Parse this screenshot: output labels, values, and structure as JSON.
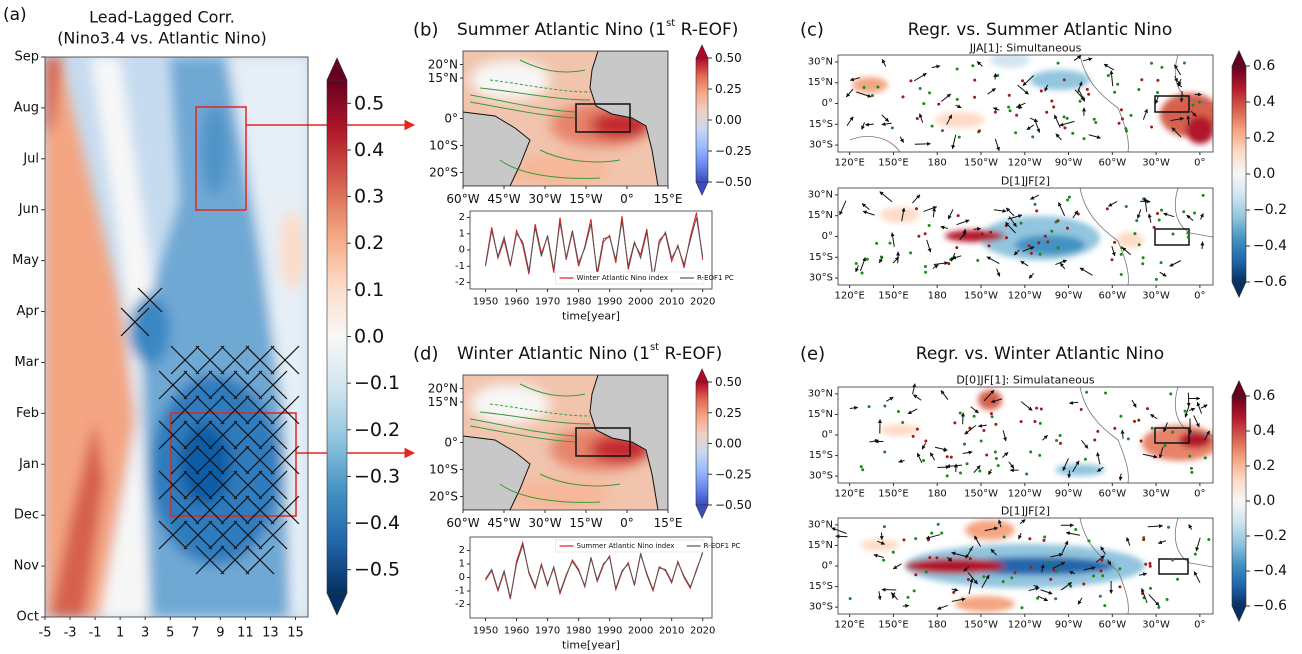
{
  "chart_data": [
    {
      "type": "contour",
      "panel": "(a)",
      "title": "Lead-Lagged Corr.",
      "subtitle": "(Nino3.4 vs. Atlantic Nino)",
      "categories": [
        "Oct",
        "Nov",
        "Dec",
        "Jan",
        "Feb",
        "Mar",
        "Apr",
        "May",
        "Jun",
        "Jul",
        "Aug",
        "Sep"
      ],
      "xlim": [
        -5,
        16
      ],
      "xticks": [
        -5,
        -3,
        -1,
        1,
        3,
        5,
        7,
        9,
        11,
        13,
        15
      ],
      "colorbar": {
        "colormap": "RdBu_r",
        "lim": [
          -0.55,
          0.55
        ],
        "ticks": [
          {
            "value": -0.5,
            "label": "−0.5"
          },
          {
            "value": -0.4,
            "label": "−0.4"
          },
          {
            "value": -0.3,
            "label": "−0.3"
          },
          {
            "value": -0.2,
            "label": "−0.2"
          },
          {
            "value": -0.1,
            "label": "−0.1"
          },
          {
            "value": 0,
            "label": "0.0"
          },
          0.1,
          0.2,
          0.3,
          0.4,
          0.5
        ]
      }
    },
    {
      "type": "map",
      "panel": "(b)",
      "title": "Summer Atlantic Nino (1",
      "title_sup": "st",
      "title_end": " R-EOF)",
      "xlim": [
        -60,
        15
      ],
      "ylim": [
        -25,
        25
      ],
      "xticks": [
        {
          "value": -60,
          "label": "60°W"
        },
        {
          "value": -45,
          "label": "45°W"
        },
        {
          "value": -30,
          "label": "30°W"
        },
        {
          "value": -15,
          "label": "15°W"
        },
        {
          "value": 0,
          "label": "0°"
        },
        {
          "value": 15,
          "label": "15°E"
        }
      ],
      "yticks": [
        {
          "value": 20,
          "label": "20°N"
        },
        {
          "value": 15,
          "label": "15°N"
        },
        {
          "value": 0,
          "label": "0°"
        },
        {
          "value": -10,
          "label": "10°S"
        },
        {
          "value": -20,
          "label": "20°S"
        }
      ],
      "colorbar": {
        "colormap": "coolwarm",
        "lim": [
          -0.5,
          0.5
        ],
        "ticks": [
          {
            "value": -0.5,
            "label": "−0.50"
          },
          {
            "value": -0.25,
            "label": "−0.25"
          },
          {
            "value": 0,
            "label": "0.00"
          },
          0.25,
          {
            "value": 0.5,
            "label": "0.50"
          }
        ]
      }
    },
    {
      "type": "line",
      "x": [
        1950,
        1952,
        1954,
        1956,
        1958,
        1960,
        1962,
        1964,
        1966,
        1968,
        1970,
        1972,
        1974,
        1976,
        1978,
        1980,
        1982,
        1984,
        1986,
        1988,
        1990,
        1992,
        1994,
        1996,
        1998,
        2000,
        2002,
        2004,
        2006,
        2008,
        2010,
        2012,
        2014,
        2016,
        2018,
        2020
      ],
      "xlim": [
        1945,
        2023
      ],
      "xticks": [
        1950,
        1960,
        1970,
        1980,
        1990,
        2000,
        2010,
        2020
      ],
      "ylim": [
        -2.4,
        2.4
      ],
      "yticks": [
        -2,
        -1,
        0,
        1,
        2
      ],
      "xlabel": "time[year]",
      "legend": "lower center",
      "series": [
        {
          "name": "Winter Atlantic Nino index",
          "color": "#e31a1c",
          "values": [
            -0.9,
            1.4,
            -0.5,
            0.6,
            -1.0,
            1.2,
            0.3,
            -1.5,
            1.6,
            -0.2,
            0.8,
            -1.4,
            2.0,
            -0.6,
            1.1,
            -1.0,
            0.2,
            1.9,
            -1.6,
            0.5,
            0.9,
            -0.8,
            2.1,
            -1.2,
            0.4,
            -0.3,
            1.3,
            -1.9,
            0.6,
            1.0,
            -0.7,
            0.3,
            -1.1,
            0.8,
            2.3,
            -0.6
          ]
        },
        {
          "name": "R-EOF1 PC",
          "color": "#555555",
          "values": [
            -1.0,
            1.2,
            -0.4,
            0.8,
            -0.9,
            1.0,
            0.5,
            -1.3,
            1.4,
            -0.4,
            0.9,
            -1.2,
            1.7,
            -0.5,
            1.2,
            -0.8,
            0.1,
            1.6,
            -1.4,
            0.7,
            0.8,
            -0.6,
            1.8,
            -1.0,
            0.5,
            -0.5,
            1.1,
            -1.7,
            0.4,
            1.1,
            -0.5,
            0.2,
            -0.9,
            0.6,
            2.0,
            -0.4
          ]
        }
      ]
    },
    {
      "type": "map",
      "panel": "(c)",
      "title": "Regr. vs. Summer Atlantic Nino",
      "maps": [
        {
          "subtitle": "JJA[1]: Simultaneous"
        },
        {
          "subtitle": "D[1]JF[2]"
        }
      ],
      "xlim": [
        112,
        369
      ],
      "ylim": [
        -35,
        35
      ],
      "xticks": [
        {
          "value": 120,
          "label": "120°E"
        },
        {
          "value": 150,
          "label": "150°E"
        },
        180,
        {
          "value": 210,
          "label": "150°W"
        },
        {
          "value": 240,
          "label": "120°W"
        },
        {
          "value": 270,
          "label": "90°W"
        },
        {
          "value": 300,
          "label": "60°W"
        },
        {
          "value": 330,
          "label": "30°W"
        },
        {
          "value": 360,
          "label": "0°"
        }
      ],
      "yticks": [
        {
          "value": 30,
          "label": "30°N"
        },
        {
          "value": 15,
          "label": "15°N"
        },
        {
          "value": 0,
          "label": "0°"
        },
        {
          "value": -15,
          "label": "15°S"
        },
        {
          "value": -30,
          "label": "30°S"
        }
      ],
      "colorbar": {
        "colormap": "RdBu_r",
        "lim": [
          -0.6,
          0.6
        ],
        "ticks": [
          {
            "value": -0.6,
            "label": "−0.6"
          },
          {
            "value": -0.4,
            "label": "−0.4"
          },
          {
            "value": -0.2,
            "label": "−0.2"
          },
          {
            "value": 0,
            "label": "0.0"
          },
          0.2,
          0.4,
          0.6
        ]
      }
    },
    {
      "type": "map",
      "panel": "(d)",
      "title": "Winter Atlantic Nino (1",
      "title_sup": "st",
      "title_end": " R-EOF)",
      "xlim": [
        -60,
        15
      ],
      "ylim": [
        -25,
        25
      ],
      "xticks": [
        {
          "value": -60,
          "label": "60°W"
        },
        {
          "value": -45,
          "label": "45°W"
        },
        {
          "value": -30,
          "label": "30°W"
        },
        {
          "value": -15,
          "label": "15°W"
        },
        {
          "value": 0,
          "label": "0°"
        },
        {
          "value": 15,
          "label": "15°E"
        }
      ],
      "yticks": [
        {
          "value": 20,
          "label": "20°N"
        },
        {
          "value": 15,
          "label": "15°N"
        },
        {
          "value": 0,
          "label": "0°"
        },
        {
          "value": -10,
          "label": "10°S"
        },
        {
          "value": -20,
          "label": "20°S"
        }
      ],
      "colorbar": {
        "colormap": "coolwarm",
        "lim": [
          -0.5,
          0.5
        ],
        "ticks": [
          {
            "value": -0.5,
            "label": "−0.50"
          },
          {
            "value": -0.25,
            "label": "−0.25"
          },
          {
            "value": 0,
            "label": "0.00"
          },
          0.25,
          {
            "value": 0.5,
            "label": "0.50"
          }
        ]
      }
    },
    {
      "type": "line",
      "x": [
        1950,
        1952,
        1954,
        1956,
        1958,
        1960,
        1962,
        1964,
        1966,
        1968,
        1970,
        1972,
        1974,
        1976,
        1978,
        1980,
        1982,
        1984,
        1986,
        1988,
        1990,
        1992,
        1994,
        1996,
        1998,
        2000,
        2002,
        2004,
        2006,
        2008,
        2010,
        2012,
        2014,
        2016,
        2018,
        2020
      ],
      "xlim": [
        1945,
        2023
      ],
      "xticks": [
        1950,
        1960,
        1970,
        1980,
        1990,
        2000,
        2010,
        2020
      ],
      "ylim": [
        -3,
        3
      ],
      "yticks": [
        -2,
        -1,
        0,
        1,
        2
      ],
      "xlabel": "time[year]",
      "legend": "upper right",
      "series": [
        {
          "name": "Summer Atlantic Nino index",
          "color": "#e31a1c",
          "values": [
            -0.2,
            0.5,
            -1.0,
            0.4,
            -1.6,
            1.2,
            2.6,
            0.3,
            -0.8,
            1.0,
            -0.5,
            0.7,
            -1.2,
            0.1,
            1.3,
            0.6,
            -0.7,
            1.5,
            -0.3,
            0.9,
            1.6,
            -0.9,
            0.4,
            1.1,
            -0.6,
            1.8,
            0.2,
            -1.0,
            0.8,
            0.5,
            -0.4,
            1.2,
            0.0,
            -0.8,
            0.6,
            1.8
          ]
        },
        {
          "name": "R-EOF1 PC",
          "color": "#555555",
          "values": [
            -0.1,
            0.6,
            -0.9,
            0.5,
            -1.5,
            1.0,
            2.4,
            0.4,
            -0.7,
            0.9,
            -0.6,
            0.8,
            -1.1,
            0.2,
            1.2,
            0.5,
            -0.6,
            1.4,
            -0.2,
            1.0,
            1.5,
            -0.8,
            0.5,
            1.0,
            -0.5,
            1.7,
            0.3,
            -0.9,
            0.7,
            0.6,
            -0.3,
            1.1,
            0.1,
            -0.7,
            0.5,
            1.9
          ]
        }
      ]
    },
    {
      "type": "map",
      "panel": "(e)",
      "title": "Regr. vs. Winter Atlantic Nino",
      "maps": [
        {
          "subtitle": "D[0]JF[1]: Simulataneous"
        },
        {
          "subtitle": "D[1]JF[2]"
        }
      ],
      "xlim": [
        112,
        369
      ],
      "ylim": [
        -35,
        35
      ],
      "xticks": [
        {
          "value": 120,
          "label": "120°E"
        },
        {
          "value": 150,
          "label": "150°E"
        },
        180,
        {
          "value": 210,
          "label": "150°W"
        },
        {
          "value": 240,
          "label": "120°W"
        },
        {
          "value": 270,
          "label": "90°W"
        },
        {
          "value": 300,
          "label": "60°W"
        },
        {
          "value": 330,
          "label": "30°W"
        },
        {
          "value": 360,
          "label": "0°"
        }
      ],
      "yticks": [
        {
          "value": 30,
          "label": "30°N"
        },
        {
          "value": 15,
          "label": "15°N"
        },
        {
          "value": 0,
          "label": "0°"
        },
        {
          "value": -15,
          "label": "15°S"
        },
        {
          "value": -30,
          "label": "30°S"
        }
      ],
      "colorbar": {
        "colormap": "RdBu_r",
        "lim": [
          -0.6,
          0.6
        ],
        "ticks": [
          {
            "value": -0.6,
            "label": "−0.6"
          },
          {
            "value": -0.4,
            "label": "−0.4"
          },
          {
            "value": -0.2,
            "label": "−0.2"
          },
          {
            "value": 0,
            "label": "0.0"
          },
          0.2,
          0.4,
          0.6
        ]
      }
    }
  ]
}
